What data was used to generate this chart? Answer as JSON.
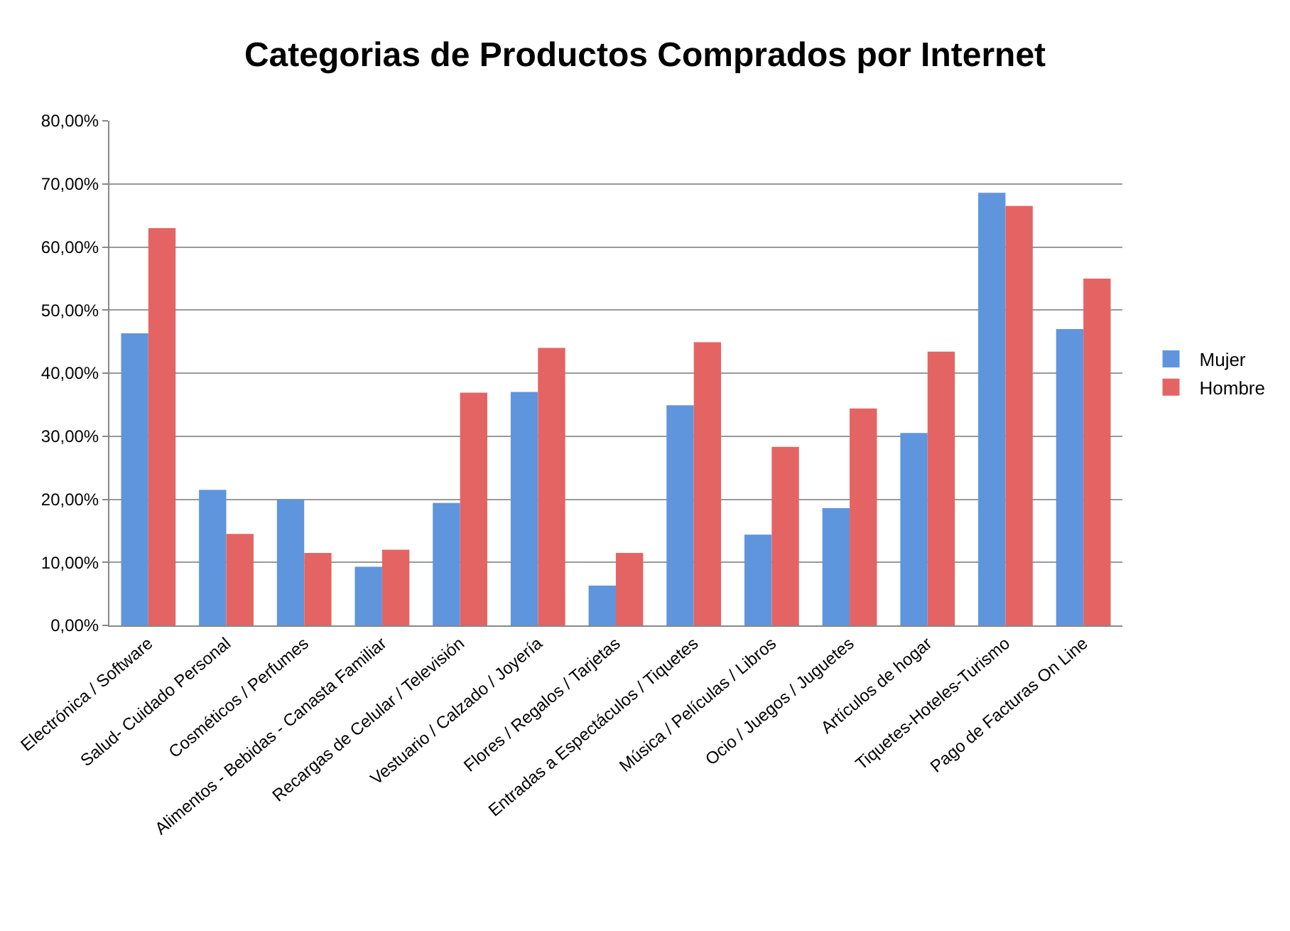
{
  "chart_data": {
    "type": "bar",
    "title": "Categorias de Productos Comprados por Internet",
    "categories": [
      "Electrónica / Software",
      "Salud- Cuidado Personal",
      "Cosméticos / Perfumes",
      "Alimentos - Bebidas - Canasta Familiar",
      "Recargas de Celular / Televisión",
      "Vestuario / Calzado / Joyería",
      "Flores / Regalos / Tarjetas",
      "Entradas a Espectáculos / Tiquetes",
      "Música / Películas / Libros",
      "Ocio / Juegos / Juguetes",
      "Artículos de hogar",
      "Tiquetes-Hoteles-Turismo",
      "Pago de Facturas On Line"
    ],
    "series": [
      {
        "name": "Mujer",
        "color": "#5f95dd",
        "values": [
          46.3,
          21.5,
          20,
          9.3,
          19.4,
          37,
          6.3,
          34.9,
          14.4,
          18.6,
          30.5,
          68.6,
          47
        ]
      },
      {
        "name": "Hombre",
        "color": "#e46464",
        "values": [
          63,
          14.5,
          11.5,
          12,
          36.9,
          44,
          11.5,
          44.9,
          28.3,
          34.4,
          43.4,
          66.5,
          55
        ]
      }
    ],
    "ylim": [
      0,
      80
    ],
    "yticks": [
      {
        "value": 0,
        "label": "0,00%"
      },
      {
        "value": 10,
        "label": "10,00%"
      },
      {
        "value": 20,
        "label": "20,00%"
      },
      {
        "value": 30,
        "label": "30,00%"
      },
      {
        "value": 40,
        "label": "40,00%"
      },
      {
        "value": 50,
        "label": "50,00%"
      },
      {
        "value": 60,
        "label": "60,00%"
      },
      {
        "value": 70,
        "label": "70,00%"
      },
      {
        "value": 80,
        "label": "80,00%"
      }
    ],
    "grid": "y",
    "legend": "right"
  }
}
